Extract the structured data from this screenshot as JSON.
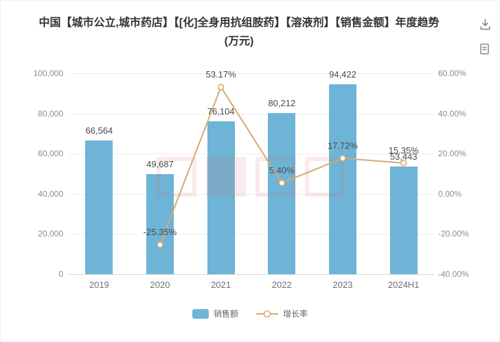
{
  "header": {
    "title_line1": "中国【城市公立,城市药店】【[化]全身用抗组胺药】【溶液剂】【销售金额】年度趋势",
    "title_line2": "(万元)",
    "icons": [
      {
        "name": "download-icon"
      },
      {
        "name": "report-icon"
      }
    ]
  },
  "chart_data": {
    "type": "bar",
    "title": "中国【城市公立,城市药店】【[化]全身用抗组胺药】【溶液剂】【销售金额】年度趋势(万元)",
    "categories": [
      "2019",
      "2020",
      "2021",
      "2022",
      "2023",
      "2024H1"
    ],
    "series": [
      {
        "name": "销售额",
        "type": "bar",
        "axis": "left",
        "color": "#6eb4d6",
        "values": [
          66564,
          49687,
          76104,
          80212,
          94422,
          53443
        ],
        "labels": [
          "66,564",
          "49,687",
          "76,104",
          "80,212",
          "94,422",
          "53,443"
        ]
      },
      {
        "name": "增长率",
        "type": "line",
        "axis": "right",
        "color": "#d9a870",
        "marker_fill": "#fdf8f1",
        "values": [
          null,
          -25.35,
          53.17,
          5.4,
          17.72,
          15.35
        ],
        "labels": [
          "",
          "-25.35%",
          "53.17%",
          "5.40%",
          "17.72%",
          "15.35%"
        ]
      }
    ],
    "left_axis": {
      "min": 0,
      "max": 100000,
      "ticks": [
        "100,000",
        "80,000",
        "60,000",
        "40,000",
        "20,000",
        "0"
      ]
    },
    "right_axis": {
      "min": -40,
      "max": 60,
      "ticks": [
        "60.00%",
        "40.00%",
        "20.00%",
        "0.00%",
        "-20.00%",
        "-40.00%"
      ]
    },
    "grid": true,
    "legend_position": "bottom",
    "legend": [
      {
        "label": "销售额",
        "type": "bar"
      },
      {
        "label": "增长率",
        "type": "line"
      }
    ]
  }
}
